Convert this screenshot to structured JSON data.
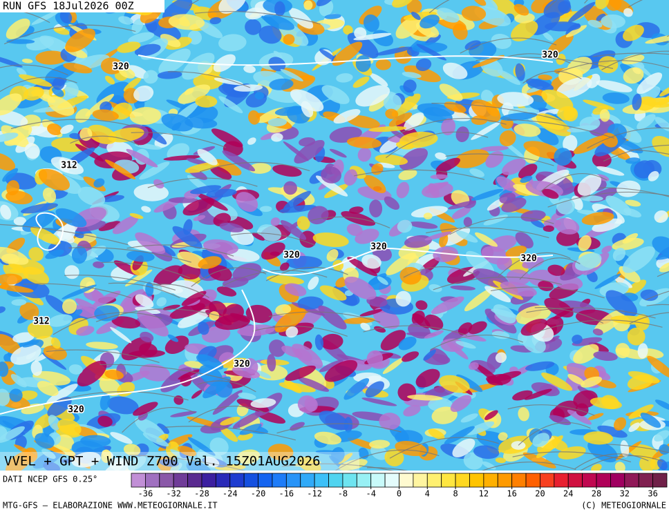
{
  "header": {
    "run": "RUN GFS 18Jul2026 00Z"
  },
  "map": {
    "title": "VVEL + GPT + WIND Z700 Val. 15Z01AUG2026",
    "contour_labels": [
      "320",
      "320",
      "312",
      "320",
      "320",
      "320",
      "312",
      "320",
      "320"
    ]
  },
  "colorbar": {
    "source": "DATI NCEP GFS 0.25°",
    "range": [
      -38,
      38
    ],
    "ticks": [
      -36,
      -32,
      -28,
      -24,
      -20,
      -16,
      -12,
      -8,
      -4,
      0,
      4,
      8,
      12,
      16,
      20,
      24,
      28,
      32,
      36
    ],
    "colors": [
      "#c18fd6",
      "#a070c0",
      "#8a58a8",
      "#703c98",
      "#5a2a90",
      "#3c1fa0",
      "#2a2ab8",
      "#1e3cd0",
      "#1450e0",
      "#1464f0",
      "#1e7cf8",
      "#2894f8",
      "#30aaf8",
      "#3cc0f8",
      "#50d4f0",
      "#6ee4f0",
      "#98f0f4",
      "#c8fafa",
      "#e4fcfc",
      "#fffad0",
      "#fff5a0",
      "#fff070",
      "#ffe640",
      "#ffd820",
      "#ffc400",
      "#ffb000",
      "#ff9a00",
      "#ff8000",
      "#ff6000",
      "#f84020",
      "#e82030",
      "#d01040",
      "#c00850",
      "#b00058",
      "#a00060",
      "#901858",
      "#802050",
      "#702048"
    ]
  },
  "footer": {
    "left": "MTG-GFS — ELABORAZIONE WWW.METEOGIORNALE.IT",
    "right": "(C) METEOGIORNALE"
  }
}
